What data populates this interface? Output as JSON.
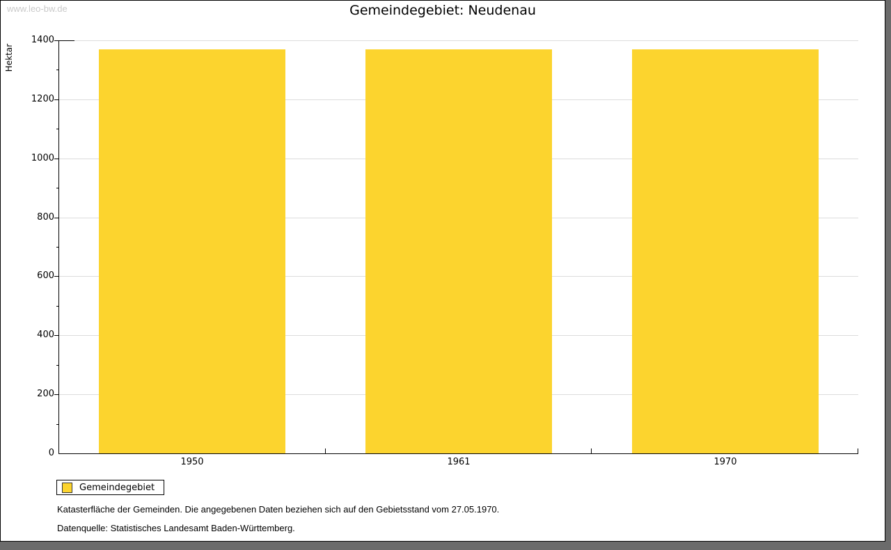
{
  "watermark": "www.leo-bw.de",
  "header": {
    "title": "Gemeindegebiet: Neudenau"
  },
  "chart_data": {
    "type": "bar",
    "title": "Gemeindegebiet: Neudenau",
    "xlabel": "",
    "ylabel": "Hektar",
    "categories": [
      "1950",
      "1961",
      "1970"
    ],
    "series": [
      {
        "name": "Gemeindegebiet",
        "values": [
          1370,
          1370,
          1370
        ]
      }
    ],
    "ylim": [
      0,
      1400
    ],
    "ytick_step": 200,
    "yminor_step": 100,
    "grid": true,
    "legend_position": "bottom-left",
    "bar_color": "#fcd42e",
    "gridline_color": "#dcdcdc"
  },
  "legend": {
    "label": "Gemeindegebiet",
    "swatch_color": "#fcd42e"
  },
  "footnotes": {
    "line1": "Katasterfläche der Gemeinden. Die angegebenen Daten beziehen sich auf den Gebietsstand vom 27.05.1970.",
    "line2": "Datenquelle: Statistisches Landesamt Baden-Württemberg."
  }
}
